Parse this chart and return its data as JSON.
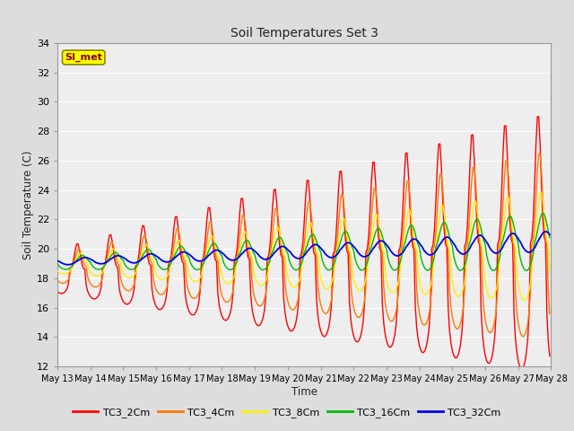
{
  "title": "Soil Temperatures Set 3",
  "xlabel": "Time",
  "ylabel": "Soil Temperature (C)",
  "ylim": [
    12,
    34
  ],
  "yticks": [
    12,
    14,
    16,
    18,
    20,
    22,
    24,
    26,
    28,
    30,
    32,
    34
  ],
  "n_days": 15,
  "day_start": 13,
  "series_colors": {
    "TC3_2Cm": "#ff0000",
    "TC3_4Cm": "#ff7700",
    "TC3_8Cm": "#ffee00",
    "TC3_16Cm": "#00bb00",
    "TC3_32Cm": "#0000ee"
  },
  "line_width": 1.0,
  "bg_color": "#dddddd",
  "plot_bg_color": "#eeeeee",
  "grid_color": "#ffffff",
  "annotation_text": "SI_met",
  "annotation_bg": "#ffff00",
  "annotation_border": "#888800",
  "figsize": [
    6.4,
    4.8
  ],
  "dpi": 100
}
